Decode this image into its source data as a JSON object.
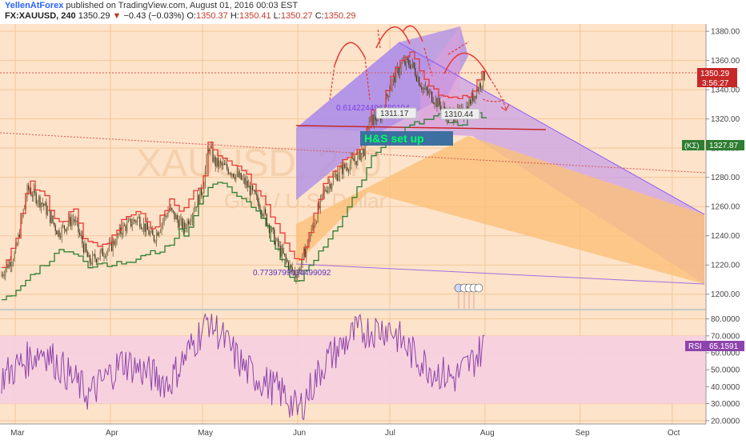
{
  "header": {
    "author": "YellenAtForex",
    "published": "published on TradingView.com, August 01, 2016 00:03 EST",
    "symbol_line": "FX:XAUUSD, 240",
    "last": "1350.29",
    "change_arrow": "▼",
    "change": "−0.43 (−0.03%)",
    "ohlc": [
      {
        "k": "O:",
        "v": "1350.37"
      },
      {
        "k": "H:",
        "v": "1350.41"
      },
      {
        "k": "L:",
        "v": "1350.27"
      },
      {
        "k": "C:",
        "v": "1350.29"
      }
    ]
  },
  "price_panel": {
    "price_tag": "1350.29",
    "countdown_tag": "3:56:27",
    "indicator_tag": "(KΣ)",
    "indicator_value": "1327.87",
    "watermark_symbol": "XAUUSD, 240",
    "watermark_name": "Gold / U.S. Dollar",
    "callout": "H&S set up",
    "annotations": [
      "0.614224496789104",
      "0.7739799034499092",
      "1311.17",
      "1310.44"
    ],
    "colors": {
      "background": "#fde3c9",
      "purple_channel": "#c9a2e6",
      "orange_channel": "#fbbf78",
      "neckline": "#c62828",
      "candle": "#5a4a2a",
      "kumo_red": "#e53935",
      "kumo_green": "#2e7d32",
      "callout_bg": "#3d6fa0",
      "callout_text": "#00ff66"
    }
  },
  "rsi_panel": {
    "label": "RSI",
    "value": "65.1591",
    "colors": {
      "line": "#8e44ad",
      "band": "#f6cfe0"
    }
  },
  "chart_data": [
    {
      "type": "line",
      "title": "",
      "series": [
        {
          "name": "",
          "x": [
            "Feb 25",
            "Mar 1",
            "Mar 5",
            "Mar 10",
            "Mar 15",
            "Mar 20",
            "Mar 25",
            "Apr 1",
            "Apr 5",
            "Apr 10",
            "Apr 15",
            "Apr 20",
            "Apr 25",
            "May 1",
            "May 3",
            "May 5",
            "May 10",
            "May 15",
            "May 20",
            "May 25",
            "May 30",
            "Jun 1",
            "Jun 5",
            "Jun 10",
            "Jun 15",
            "Jun 20",
            "Jun 23",
            "Jun 24",
            "Jun 28",
            "Jul 1",
            "Jul 5",
            "Jul 8",
            "Jul 12",
            "Jul 15",
            "Jul 20",
            "Jul 25",
            "Jul 28",
            "Aug 1"
          ],
          "values": [
            1212,
            1228,
            1272,
            1262,
            1242,
            1252,
            1222,
            1232,
            1245,
            1252,
            1238,
            1258,
            1245,
            1272,
            1302,
            1290,
            1285,
            1276,
            1260,
            1235,
            1216,
            1214,
            1240,
            1272,
            1285,
            1292,
            1300,
            1318,
            1322,
            1342,
            1358,
            1358,
            1340,
            1335,
            1322,
            1324,
            1335,
            1350.29
          ]
        },
        {
          "name": "",
          "x": [
            "Feb 25",
            "Mar 15",
            "Apr 1",
            "Apr 20",
            "May 5",
            "May 20",
            "Jun 1",
            "Jun 15",
            "Jun 25",
            "Jul 5",
            "Jul 20",
            "Aug 1"
          ],
          "values": [
            1200,
            1235,
            1225,
            1238,
            1285,
            1260,
            1215,
            1255,
            1300,
            1320,
            1330,
            1327.87
          ]
        }
      ],
      "ylim": [
        1190,
        1385
      ],
      "y_ticks": [
        "1380.00",
        "1360.00",
        "1340.00",
        "1320.00",
        "1300.00",
        "1280.00",
        "1260.00",
        "1240.00",
        "1220.00",
        "1200.00"
      ],
      "x_ticks": [
        "Mar",
        "Apr",
        "May",
        "Jun",
        "Jul",
        "Aug",
        "Sep",
        "Oct"
      ],
      "grid": true
    },
    {
      "type": "line",
      "title": "",
      "series": [
        {
          "name": "",
          "x": [
            "Feb 25",
            "Mar 10",
            "Mar 25",
            "Apr 5",
            "Apr 20",
            "May 3",
            "May 15",
            "May 28",
            "Jun 1",
            "Jun 10",
            "Jun 20",
            "Jul 1",
            "Jul 8",
            "Jul 15",
            "Jul 22",
            "Jul 28",
            "Aug 1"
          ],
          "values": [
            45,
            62,
            35,
            55,
            42,
            80,
            50,
            35,
            25,
            55,
            72,
            75,
            60,
            50,
            45,
            55,
            65.16
          ]
        }
      ],
      "ylim": [
        18,
        85
      ],
      "y_ticks": [
        "80.0000",
        "70.0000",
        "60.0000",
        "50.0000",
        "40.0000",
        "30.0000",
        "20.0000"
      ],
      "grid": true
    }
  ]
}
